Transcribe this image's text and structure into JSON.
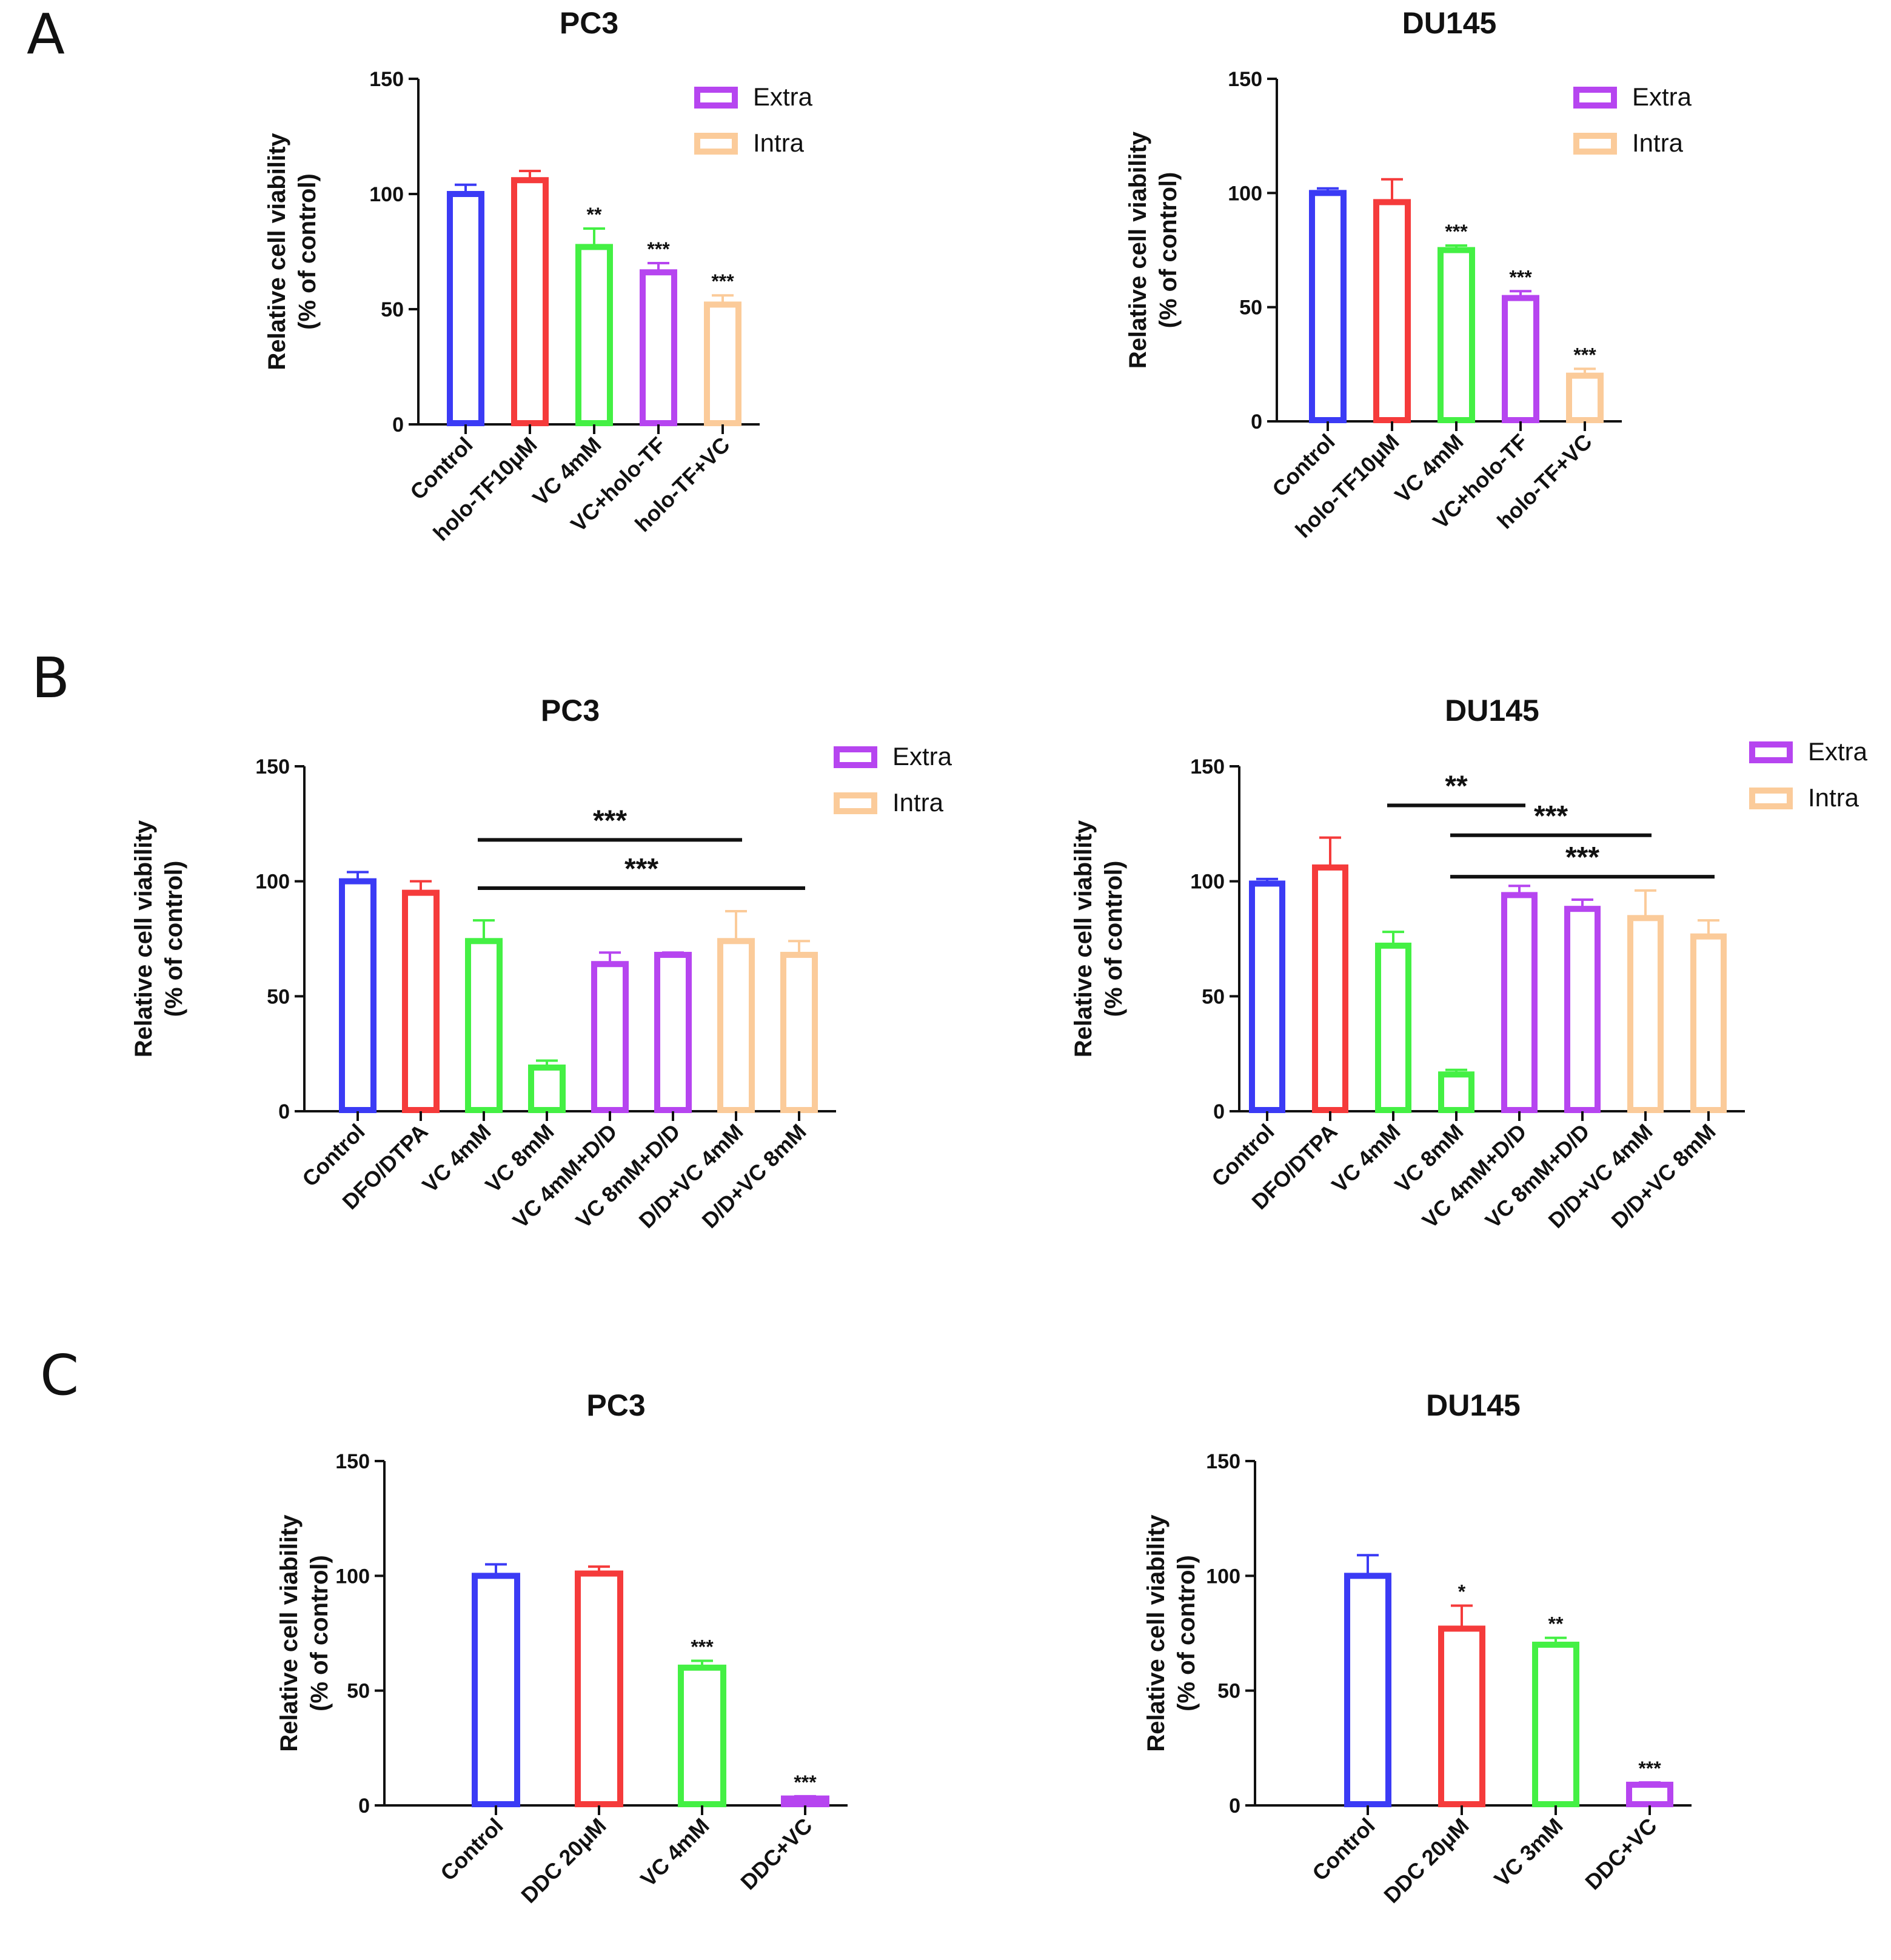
{
  "panel_letters": [
    "A",
    "B",
    "C"
  ],
  "legend": {
    "extra": "Extra",
    "intra": "Intra"
  },
  "colors": {
    "blue": "#3b3bf5",
    "red": "#f53b3b",
    "green": "#44f044",
    "purple": "#b645f0",
    "peach": "#fbcb9a"
  },
  "chart_data": [
    {
      "type": "bar",
      "panel": "A",
      "title": "PC3",
      "ylabel": [
        "Relative cell viability",
        "(% of control)"
      ],
      "ylim": [
        0,
        150
      ],
      "yticks": [
        0,
        50,
        100,
        150
      ],
      "categories": [
        "Control",
        "holo-TF10μM",
        "VC 4mM",
        "VC+holo-TF",
        "holo-TF+VC"
      ],
      "values": [
        100,
        106,
        77,
        66,
        52
      ],
      "errors": [
        4,
        4,
        8,
        4,
        4
      ],
      "colors": [
        "blue",
        "red",
        "green",
        "purple",
        "peach"
      ],
      "significance": [
        "",
        "",
        "**",
        "***",
        "***"
      ],
      "legend": true
    },
    {
      "type": "bar",
      "panel": "A",
      "title": "DU145",
      "ylabel": [
        "Relative cell viability",
        "(% of control)"
      ],
      "ylim": [
        0,
        150
      ],
      "yticks": [
        0,
        50,
        100,
        150
      ],
      "categories": [
        "Control",
        "holo-TF10μM",
        "VC 4mM",
        "VC+holo-TF",
        "holo-TF+VC"
      ],
      "values": [
        100,
        96,
        75,
        54,
        20
      ],
      "errors": [
        2,
        10,
        2,
        3,
        3
      ],
      "colors": [
        "blue",
        "red",
        "green",
        "purple",
        "peach"
      ],
      "significance": [
        "",
        "",
        "***",
        "***",
        "***"
      ],
      "legend": true
    },
    {
      "type": "bar",
      "panel": "B",
      "title": "PC3",
      "ylabel": [
        "Relative cell viability",
        "(% of control)"
      ],
      "ylim": [
        0,
        150
      ],
      "yticks": [
        0,
        50,
        100,
        150
      ],
      "categories": [
        "Control",
        "DFO/DTPA",
        "VC 4mM",
        "VC 8mM",
        "VC 4mM+D/D",
        "VC 8mM+D/D",
        "D/D+VC 4mM",
        "D/D+VC 8mM"
      ],
      "values": [
        100,
        95,
        74,
        19,
        64,
        68,
        74,
        68
      ],
      "errors": [
        4,
        5,
        9,
        3,
        5,
        1,
        13,
        6
      ],
      "colors": [
        "blue",
        "red",
        "green",
        "green",
        "purple",
        "purple",
        "peach",
        "peach"
      ],
      "brackets": [
        {
          "from": 2,
          "to": 6,
          "y": 118,
          "label": "***"
        },
        {
          "from": 2,
          "to": 7,
          "y": 97,
          "label": "***"
        }
      ],
      "legend": true
    },
    {
      "type": "bar",
      "panel": "B",
      "title": "DU145",
      "ylabel": [
        "Relative cell viability",
        "(% of control)"
      ],
      "ylim": [
        0,
        150
      ],
      "yticks": [
        0,
        50,
        100,
        150
      ],
      "categories": [
        "Control",
        "DFO/DTPA",
        "VC 4mM",
        "VC 8mM",
        "VC 4mM+D/D",
        "VC 8mM+D/D",
        "D/D+VC 4mM",
        "D/D+VC 8mM"
      ],
      "values": [
        99,
        106,
        72,
        16,
        94,
        88,
        84,
        76
      ],
      "errors": [
        2,
        13,
        6,
        2,
        4,
        4,
        12,
        7
      ],
      "colors": [
        "blue",
        "red",
        "green",
        "green",
        "purple",
        "purple",
        "peach",
        "peach"
      ],
      "brackets": [
        {
          "from": 2,
          "to": 4,
          "y": 133,
          "label": "**"
        },
        {
          "from": 3,
          "to": 6,
          "y": 120,
          "label": "***"
        },
        {
          "from": 3,
          "to": 7,
          "y": 102,
          "label": "***"
        }
      ],
      "legend": true
    },
    {
      "type": "bar",
      "panel": "C",
      "title": "PC3",
      "ylabel": [
        "Relative cell viability",
        "(% of control)"
      ],
      "ylim": [
        0,
        150
      ],
      "yticks": [
        0,
        50,
        100,
        150
      ],
      "categories": [
        "Control",
        "DDC 20μM",
        "VC 4mM",
        "DDC+VC"
      ],
      "values": [
        100,
        101,
        60,
        3
      ],
      "errors": [
        5,
        3,
        3,
        1
      ],
      "colors": [
        "blue",
        "red",
        "green",
        "purple"
      ],
      "significance": [
        "",
        "",
        "***",
        "***"
      ],
      "legend": false
    },
    {
      "type": "bar",
      "panel": "C",
      "title": "DU145",
      "ylabel": [
        "Relative cell viability",
        "(% of control)"
      ],
      "ylim": [
        0,
        150
      ],
      "yticks": [
        0,
        50,
        100,
        150
      ],
      "categories": [
        "Control",
        "DDC 20μM",
        "VC 3mM",
        "DDC+VC"
      ],
      "values": [
        100,
        77,
        70,
        9
      ],
      "errors": [
        9,
        10,
        3,
        1
      ],
      "colors": [
        "blue",
        "red",
        "green",
        "purple"
      ],
      "significance": [
        "",
        "*",
        "**",
        "***"
      ],
      "legend": false
    }
  ]
}
